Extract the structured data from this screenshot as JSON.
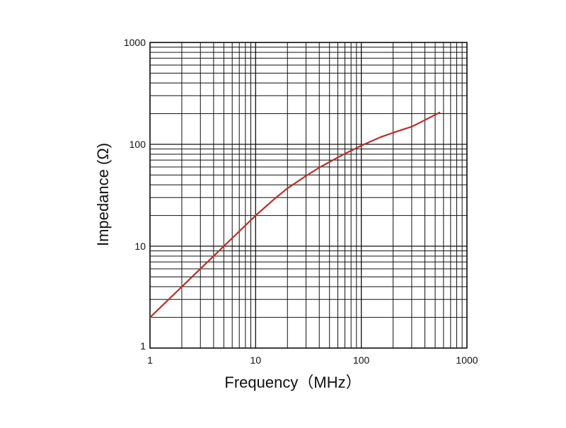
{
  "chart_data": {
    "type": "line",
    "title": "",
    "xlabel": "Frequency（MHz）",
    "ylabel": "Impedance (Ω)",
    "x_scale": "log",
    "y_scale": "log",
    "xlim": [
      1,
      1000
    ],
    "ylim": [
      1,
      1000
    ],
    "grid": true,
    "legend": "none",
    "x_ticks": [
      {
        "value": 1,
        "label": "1"
      },
      {
        "value": 10,
        "label": "10"
      },
      {
        "value": 100,
        "label": "100"
      },
      {
        "value": 1000,
        "label": "1000"
      }
    ],
    "y_ticks": [
      {
        "value": 1,
        "label": "1"
      },
      {
        "value": 10,
        "label": "10"
      },
      {
        "value": 100,
        "label": "100"
      },
      {
        "value": 1000,
        "label": "1000"
      }
    ],
    "series": [
      {
        "color": "#b5302a",
        "x": [
          1,
          2,
          3,
          5,
          7,
          10,
          15,
          20,
          30,
          40,
          50,
          70,
          100,
          150,
          200,
          300,
          400,
          550
        ],
        "y": [
          2,
          4,
          6,
          10,
          14,
          20,
          29,
          37,
          49,
          59,
          67,
          81,
          97,
          117,
          130,
          149,
          173,
          205
        ]
      }
    ]
  }
}
